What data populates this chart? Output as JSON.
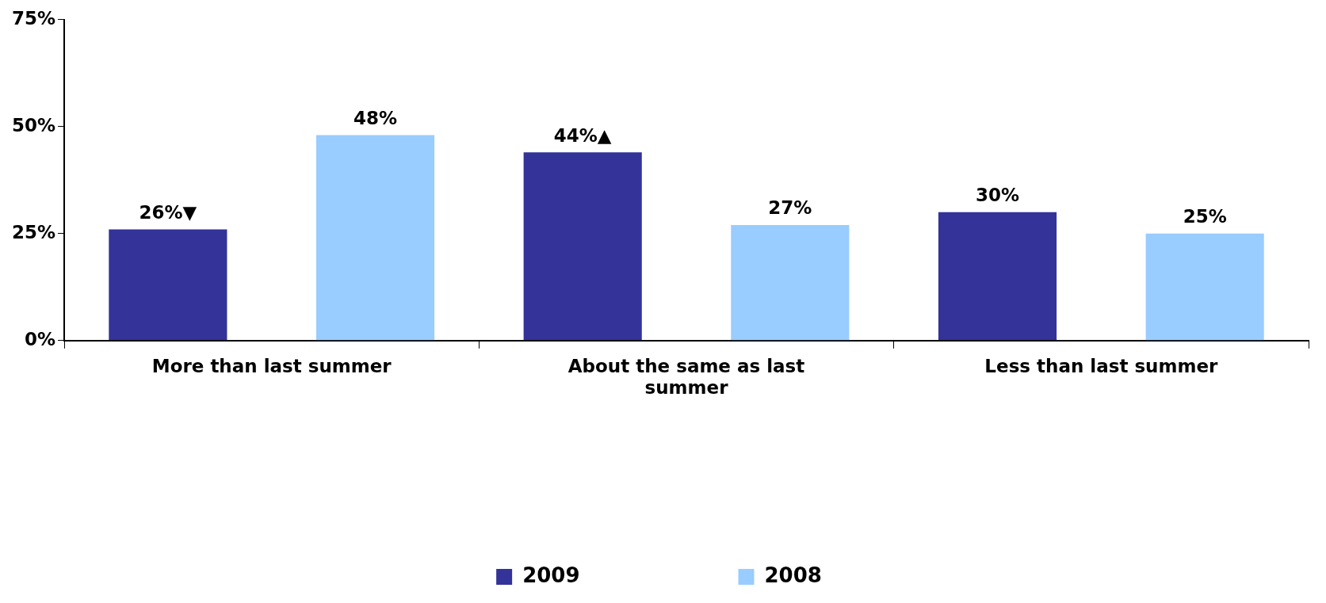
{
  "chart_data": {
    "type": "bar",
    "categories": [
      "More than last summer",
      "About the same as last summer",
      "Less than last summer"
    ],
    "series": [
      {
        "name": "2009",
        "color": "#333399",
        "values": [
          26,
          44,
          30
        ],
        "value_labels": [
          "26%▼",
          "44%▲",
          "30%"
        ]
      },
      {
        "name": "2008",
        "color": "#99ccff",
        "values": [
          48,
          27,
          25
        ],
        "value_labels": [
          "48%",
          "27%",
          "25%"
        ]
      }
    ],
    "ylim": [
      0,
      75
    ],
    "yticks": [
      {
        "value": 0,
        "label": "0%"
      },
      {
        "value": 25,
        "label": "25%"
      },
      {
        "value": 50,
        "label": "50%"
      },
      {
        "value": 75,
        "label": "75%"
      }
    ],
    "grid": false,
    "legend": "bottom"
  }
}
